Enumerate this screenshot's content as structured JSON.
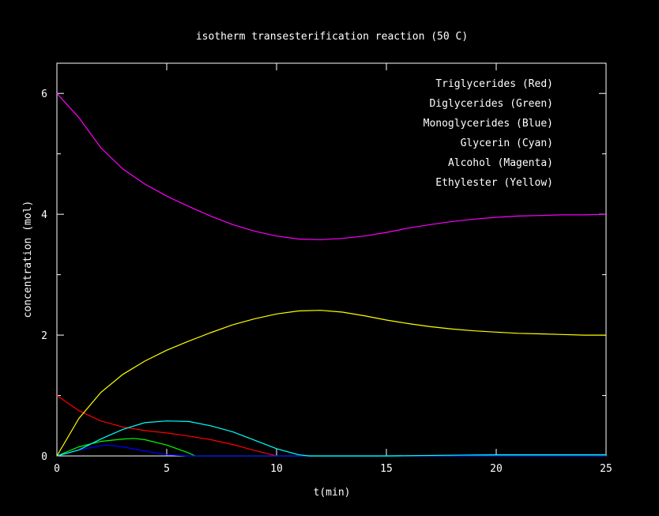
{
  "chart_data": {
    "type": "line",
    "title": "isotherm transesterification reaction (50 C)",
    "xlabel": "t(min)",
    "ylabel": "concentration (mol)",
    "xlim": [
      0,
      25
    ],
    "ylim": [
      0,
      6.5
    ],
    "xticks": [
      0,
      5,
      10,
      15,
      20,
      25
    ],
    "yticks": [
      0,
      2,
      4,
      6
    ],
    "grid": false,
    "legend_position": "top-right",
    "series": [
      {
        "name": "Triglycerides (Red)",
        "color": "#ff0000",
        "x": [
          0,
          1,
          2,
          3,
          4,
          5,
          6,
          7,
          8,
          9,
          10
        ],
        "y": [
          1.0,
          0.75,
          0.58,
          0.48,
          0.42,
          0.38,
          0.33,
          0.27,
          0.19,
          0.09,
          0.0
        ]
      },
      {
        "name": "Diglycerides (Green)",
        "color": "#00ff00",
        "x": [
          0,
          1,
          2,
          3,
          3.5,
          4,
          5,
          6,
          6.3,
          10,
          15,
          18,
          20,
          22,
          25
        ],
        "y": [
          0,
          0.15,
          0.24,
          0.28,
          0.29,
          0.27,
          0.18,
          0.05,
          0.0,
          0.0,
          0.0,
          0.0,
          0.01,
          0.01,
          0.01
        ]
      },
      {
        "name": "Monoglycerides (Blue)",
        "color": "#0000ff",
        "x": [
          0,
          1,
          2,
          2.3,
          3,
          4,
          5,
          6,
          10,
          16,
          20,
          25
        ],
        "y": [
          0,
          0.1,
          0.17,
          0.18,
          0.15,
          0.08,
          0.02,
          0.0,
          0.0,
          0.0,
          0.0,
          0.0
        ]
      },
      {
        "name": "Glycerin (Cyan)",
        "color": "#00ffff",
        "x": [
          0,
          1,
          2,
          3,
          4,
          5,
          6,
          7,
          8,
          9,
          10,
          11,
          11.5,
          15,
          20,
          25
        ],
        "y": [
          0,
          0.1,
          0.28,
          0.44,
          0.55,
          0.58,
          0.57,
          0.5,
          0.4,
          0.26,
          0.12,
          0.02,
          0.0,
          0.0,
          0.02,
          0.02
        ]
      },
      {
        "name": "Alcohol (Magenta)",
        "color": "#ff00ff",
        "x": [
          0,
          1,
          2,
          3,
          4,
          5,
          6,
          7,
          8,
          9,
          10,
          11,
          12,
          13,
          14,
          15,
          16,
          17,
          18,
          19,
          20,
          21,
          22,
          23,
          24,
          25
        ],
        "y": [
          6.0,
          5.6,
          5.1,
          4.75,
          4.5,
          4.3,
          4.13,
          3.97,
          3.83,
          3.72,
          3.64,
          3.59,
          3.58,
          3.6,
          3.64,
          3.7,
          3.77,
          3.83,
          3.88,
          3.92,
          3.95,
          3.97,
          3.98,
          3.99,
          3.99,
          4.0
        ]
      },
      {
        "name": "Ethylester (Yellow)",
        "color": "#ffff00",
        "x": [
          0,
          1,
          2,
          3,
          4,
          5,
          6,
          7,
          8,
          9,
          10,
          11,
          12,
          13,
          14,
          15,
          16,
          17,
          18,
          19,
          20,
          21,
          22,
          23,
          24,
          25
        ],
        "y": [
          0,
          0.62,
          1.05,
          1.35,
          1.57,
          1.75,
          1.9,
          2.04,
          2.17,
          2.27,
          2.35,
          2.4,
          2.41,
          2.38,
          2.32,
          2.25,
          2.19,
          2.14,
          2.1,
          2.07,
          2.05,
          2.03,
          2.02,
          2.01,
          2.0,
          2.0
        ]
      }
    ]
  }
}
